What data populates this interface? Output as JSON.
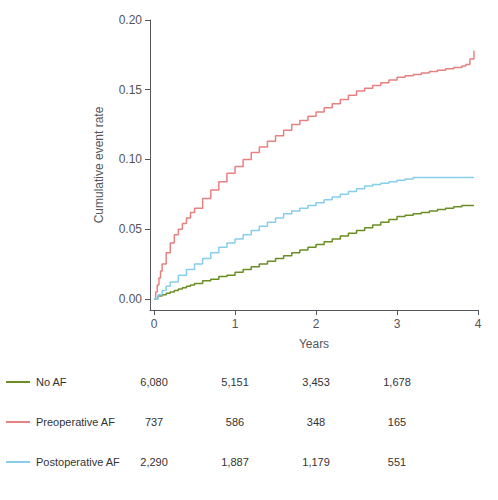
{
  "chart_data": {
    "type": "step",
    "xlabel": "Years",
    "ylabel": "Cumulative event rate",
    "xlim": [
      -0.05,
      4.0
    ],
    "ylim": [
      -0.008,
      0.2
    ],
    "xticks": [
      0,
      1,
      2,
      3,
      4
    ],
    "yticks": [
      {
        "value": 0.0,
        "label": "0.00"
      },
      0.05,
      {
        "value": 0.1,
        "label": "0.10"
      },
      0.15,
      {
        "value": 0.2,
        "label": "0.20"
      }
    ],
    "grid": false,
    "legend": "lower left",
    "at_risk_times": [
      0,
      1,
      2,
      3
    ],
    "series": [
      {
        "name": "No AF",
        "color": "#6b8e23",
        "at_risk": [
          "6,080",
          "5,151",
          "3,453",
          "1,678"
        ],
        "x": [
          0,
          0.05,
          0.1,
          0.15,
          0.2,
          0.25,
          0.3,
          0.35,
          0.4,
          0.45,
          0.5,
          0.6,
          0.7,
          0.8,
          0.9,
          1.0,
          1.1,
          1.2,
          1.3,
          1.4,
          1.5,
          1.6,
          1.7,
          1.8,
          1.9,
          2.0,
          2.1,
          2.2,
          2.3,
          2.4,
          2.5,
          2.6,
          2.7,
          2.8,
          2.9,
          3.0,
          3.1,
          3.2,
          3.3,
          3.4,
          3.5,
          3.6,
          3.7,
          3.8,
          3.9,
          3.95
        ],
        "values": [
          0.0,
          0.002,
          0.003,
          0.004,
          0.005,
          0.006,
          0.007,
          0.008,
          0.009,
          0.01,
          0.011,
          0.013,
          0.014,
          0.016,
          0.017,
          0.019,
          0.021,
          0.023,
          0.025,
          0.027,
          0.029,
          0.031,
          0.033,
          0.035,
          0.037,
          0.039,
          0.041,
          0.043,
          0.045,
          0.047,
          0.049,
          0.051,
          0.053,
          0.055,
          0.057,
          0.059,
          0.06,
          0.061,
          0.062,
          0.063,
          0.064,
          0.065,
          0.066,
          0.067,
          0.067,
          0.067
        ]
      },
      {
        "name": "Preoperative AF",
        "color": "#e88080",
        "at_risk": [
          "737",
          "586",
          "348",
          "165"
        ],
        "x": [
          0,
          0.02,
          0.04,
          0.06,
          0.08,
          0.1,
          0.15,
          0.2,
          0.25,
          0.3,
          0.35,
          0.4,
          0.45,
          0.5,
          0.6,
          0.7,
          0.8,
          0.9,
          1.0,
          1.1,
          1.2,
          1.3,
          1.4,
          1.5,
          1.6,
          1.7,
          1.8,
          1.9,
          2.0,
          2.1,
          2.2,
          2.3,
          2.4,
          2.5,
          2.6,
          2.7,
          2.8,
          2.9,
          3.0,
          3.1,
          3.2,
          3.3,
          3.4,
          3.5,
          3.6,
          3.7,
          3.8,
          3.85,
          3.9,
          3.95
        ],
        "values": [
          0.0,
          0.005,
          0.01,
          0.015,
          0.02,
          0.025,
          0.033,
          0.04,
          0.046,
          0.05,
          0.054,
          0.058,
          0.062,
          0.065,
          0.072,
          0.078,
          0.084,
          0.09,
          0.095,
          0.1,
          0.105,
          0.109,
          0.113,
          0.117,
          0.121,
          0.125,
          0.128,
          0.131,
          0.134,
          0.137,
          0.14,
          0.143,
          0.146,
          0.149,
          0.151,
          0.153,
          0.155,
          0.157,
          0.159,
          0.16,
          0.161,
          0.162,
          0.163,
          0.164,
          0.165,
          0.166,
          0.167,
          0.168,
          0.172,
          0.178
        ]
      },
      {
        "name": "Postoperative AF",
        "color": "#87ceeb",
        "at_risk": [
          "2,290",
          "1,887",
          "1,179",
          "551"
        ],
        "x": [
          0,
          0.05,
          0.1,
          0.15,
          0.2,
          0.3,
          0.4,
          0.5,
          0.6,
          0.7,
          0.8,
          0.9,
          1.0,
          1.1,
          1.2,
          1.3,
          1.4,
          1.5,
          1.6,
          1.7,
          1.8,
          1.9,
          2.0,
          2.1,
          2.2,
          2.3,
          2.4,
          2.5,
          2.6,
          2.7,
          2.8,
          2.9,
          3.0,
          3.1,
          3.2,
          3.3,
          3.4,
          3.5,
          3.6,
          3.7,
          3.8,
          3.9,
          3.95
        ],
        "values": [
          0.0,
          0.003,
          0.006,
          0.009,
          0.012,
          0.017,
          0.021,
          0.025,
          0.029,
          0.033,
          0.037,
          0.04,
          0.043,
          0.046,
          0.049,
          0.052,
          0.055,
          0.058,
          0.061,
          0.063,
          0.065,
          0.067,
          0.069,
          0.071,
          0.073,
          0.075,
          0.077,
          0.079,
          0.081,
          0.082,
          0.083,
          0.084,
          0.085,
          0.086,
          0.087,
          0.087,
          0.087,
          0.087,
          0.087,
          0.087,
          0.087,
          0.087,
          0.087
        ]
      }
    ]
  }
}
